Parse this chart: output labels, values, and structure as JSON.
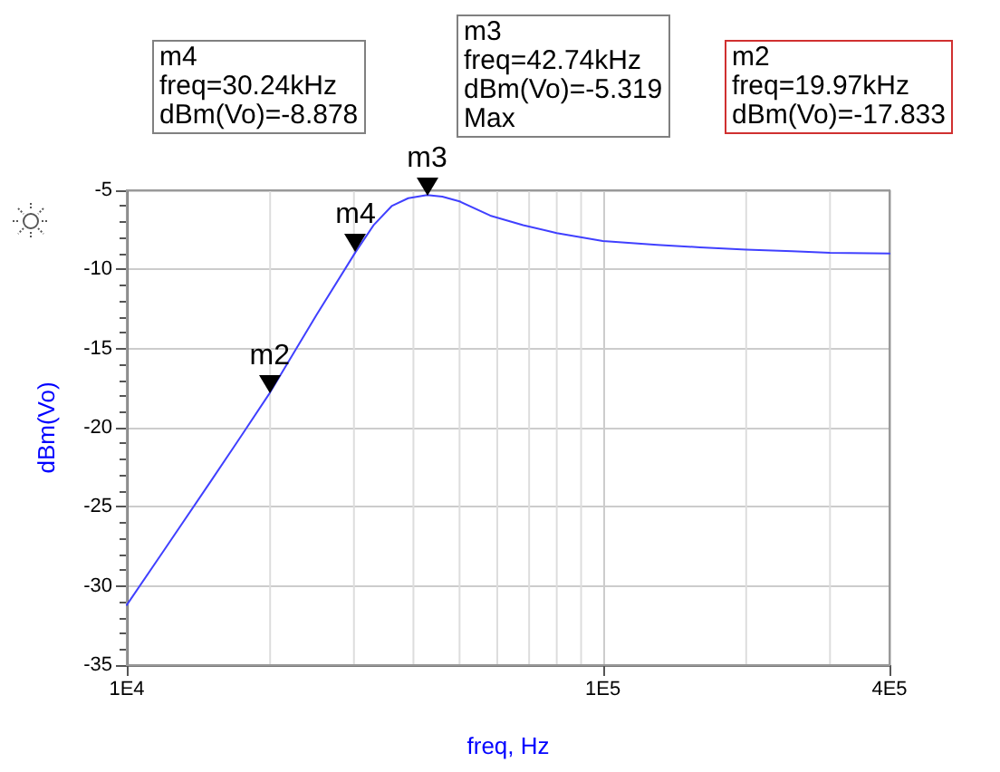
{
  "chart_data": {
    "type": "line",
    "xlabel": "freq, Hz",
    "ylabel": "dBm(Vo)",
    "log": "x",
    "xlim": [
      10000,
      400000
    ],
    "xticks": [
      {
        "value": 10000,
        "label": "1E4"
      },
      {
        "value": 100000,
        "label": "1E5"
      },
      {
        "value": 400000,
        "label": "4E5"
      }
    ],
    "ylim": [
      -35,
      -5
    ],
    "yticks": [
      -35,
      -30,
      -25,
      -20,
      -15,
      -10,
      -5
    ],
    "grid": true,
    "marker": "none",
    "line_style": "solid",
    "series": [
      {
        "color": "#4040ff",
        "x": [
          10000,
          12000,
          15000,
          17500,
          19970,
          25000,
          30240,
          33000,
          36000,
          39000,
          42740,
          46000,
          50000,
          58000,
          68000,
          80000,
          100000,
          130000,
          160000,
          200000,
          250000,
          300000,
          400000
        ],
        "values": [
          -31.2,
          -27.7,
          -23.4,
          -20.4,
          -17.8,
          -12.9,
          -8.9,
          -7.2,
          -6.0,
          -5.5,
          -5.3,
          -5.4,
          -5.7,
          -6.6,
          -7.2,
          -7.7,
          -8.2,
          -8.45,
          -8.6,
          -8.75,
          -8.85,
          -8.95,
          -9.0
        ]
      }
    ],
    "annotations": [
      "m4\nfreq=30.24kHz\ndBm(Vo)=-8.878",
      "m3\nfreq=42.74kHz\ndBm(Vo)=-5.319\nMax",
      "m2\nfreq=19.97kHz\ndBm(Vo)=-17.833",
      {
        "text": "m4",
        "x": 30240,
        "y": -8.9
      },
      {
        "text": "m3",
        "x": 42740,
        "y": -5.3
      },
      {
        "text": "m2",
        "x": 19970,
        "y": -17.8
      }
    ]
  }
}
